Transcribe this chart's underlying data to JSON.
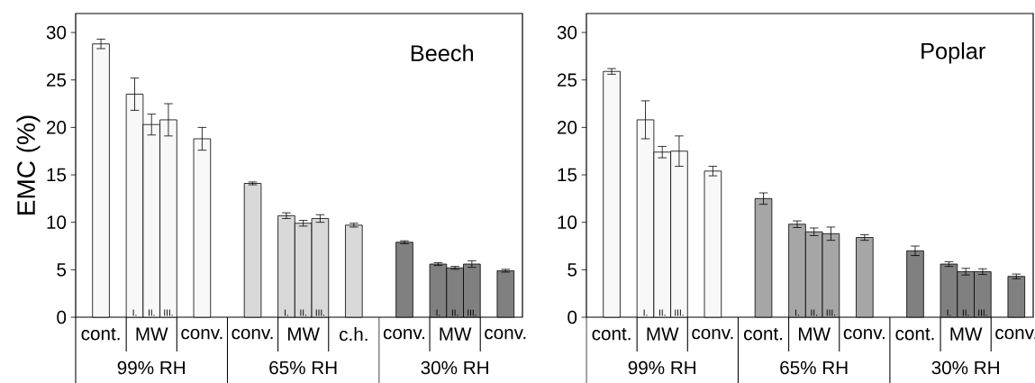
{
  "chart_data": [
    {
      "type": "bar",
      "title": "Beech",
      "ylabel": "EMC (%)",
      "categories": [
        "cont.",
        null,
        "I.",
        "II.",
        "III.",
        null,
        "conv.",
        null,
        null,
        "conv.",
        null,
        "I.",
        "II.",
        "III.",
        null,
        "c.h.",
        null,
        null,
        "conv.",
        null,
        "I.",
        "II.",
        "III.",
        null,
        "conv."
      ],
      "values": [
        28.8,
        null,
        23.5,
        20.3,
        20.8,
        null,
        18.8,
        null,
        null,
        14.1,
        null,
        10.7,
        9.9,
        10.4,
        null,
        9.7,
        null,
        null,
        7.9,
        null,
        5.6,
        5.2,
        5.6,
        null,
        4.9
      ],
      "errors": [
        0.5,
        null,
        1.7,
        1.1,
        1.7,
        null,
        1.2,
        null,
        null,
        0.15,
        null,
        0.3,
        0.3,
        0.4,
        null,
        0.2,
        null,
        null,
        0.15,
        null,
        0.15,
        0.15,
        0.35,
        null,
        0.15
      ],
      "colors": [
        "#f8f8f8",
        null,
        "#f8f8f8",
        "#f8f8f8",
        "#f8f8f8",
        null,
        "#f8f8f8",
        null,
        null,
        "#d9d9d9",
        null,
        "#d9d9d9",
        "#d9d9d9",
        "#d9d9d9",
        null,
        "#d9d9d9",
        null,
        null,
        "#808080",
        null,
        "#808080",
        "#808080",
        "#808080",
        null,
        "#808080"
      ],
      "ylim": [
        0,
        32
      ],
      "yticks": [
        0,
        5,
        10,
        15,
        20,
        25,
        30
      ],
      "annotations": [
        "MW",
        "MW",
        "MW",
        "99% RH",
        "65% RH",
        "30% RH"
      ]
    },
    {
      "type": "bar",
      "title": "Poplar",
      "categories": [
        "cont.",
        null,
        "I.",
        "II.",
        "III.",
        null,
        "conv.",
        null,
        null,
        "cont.",
        null,
        "I.",
        "II.",
        "III.",
        null,
        "conv.",
        null,
        null,
        "cont.",
        null,
        "I.",
        "II.",
        "III.",
        null,
        "conv."
      ],
      "values": [
        25.9,
        null,
        20.8,
        17.4,
        17.5,
        null,
        15.4,
        null,
        null,
        12.5,
        null,
        9.8,
        9.0,
        8.8,
        null,
        8.4,
        null,
        null,
        7.0,
        null,
        5.6,
        4.8,
        4.8,
        null,
        4.3
      ],
      "errors": [
        0.3,
        null,
        2.0,
        0.6,
        1.6,
        null,
        0.5,
        null,
        null,
        0.6,
        null,
        0.35,
        0.4,
        0.7,
        null,
        0.3,
        null,
        null,
        0.5,
        null,
        0.25,
        0.35,
        0.3,
        null,
        0.25
      ],
      "colors": [
        "#f8f8f8",
        null,
        "#f8f8f8",
        "#f8f8f8",
        "#f8f8f8",
        null,
        "#f8f8f8",
        null,
        null,
        "#a6a6a6",
        null,
        "#a6a6a6",
        "#a6a6a6",
        "#a6a6a6",
        null,
        "#a6a6a6",
        null,
        null,
        "#808080",
        null,
        "#808080",
        "#808080",
        "#808080",
        null,
        "#808080"
      ],
      "ylim": [
        0,
        32
      ],
      "yticks": [
        0,
        5,
        10,
        15,
        20,
        25,
        30
      ],
      "annotations": [
        "MW",
        "MW",
        "MW",
        "99% RH",
        "65% RH",
        "30% RH"
      ]
    }
  ]
}
